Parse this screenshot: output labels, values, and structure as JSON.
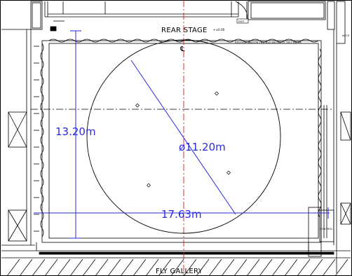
{
  "labels": {
    "rear_stage": "REAR STAGE",
    "level": "+±0.00",
    "exit": "EXIT",
    "revolve_note": "REVOLVE WAGON 16x18x0.4M DIA:11.2M CENTRE",
    "centre_mark": "℄",
    "fly_gallery": "FLY GALLERY",
    "control": "CONTROL",
    "side_code": "ACCE"
  },
  "dimensions": {
    "height": "13.20m",
    "diameter": "ø11.20m",
    "width": "17.63m"
  },
  "colors": {
    "line": "#000000",
    "dimension": "#2a2adf",
    "centreline": "#cc1f1f"
  }
}
